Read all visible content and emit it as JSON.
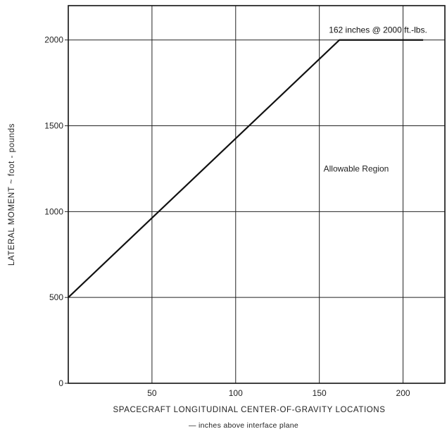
{
  "chart_data": {
    "type": "line",
    "xlabel": "SPACECRAFT LONGITUDINAL CENTER-OF-GRAVITY LOCATIONS",
    "xlabel_sub": "— inches above interface plane",
    "ylabel": "LATERAL MOMENT ~ foot - pounds",
    "xlim": [
      0,
      225
    ],
    "ylim": [
      0,
      2200
    ],
    "x_ticks": [
      50,
      100,
      150,
      200
    ],
    "y_ticks": [
      0,
      500,
      1000,
      1500,
      2000
    ],
    "grid": true,
    "series": [
      {
        "x": [
          0,
          162,
          212
        ],
        "y": [
          500,
          2000,
          2000
        ]
      }
    ],
    "annotations": [
      {
        "text": "162 inches @ 2000 ft.-lbs.",
        "x": 162,
        "y": 2000
      },
      {
        "text": "Allowable Region",
        "x": 172,
        "y": 1250
      }
    ]
  }
}
